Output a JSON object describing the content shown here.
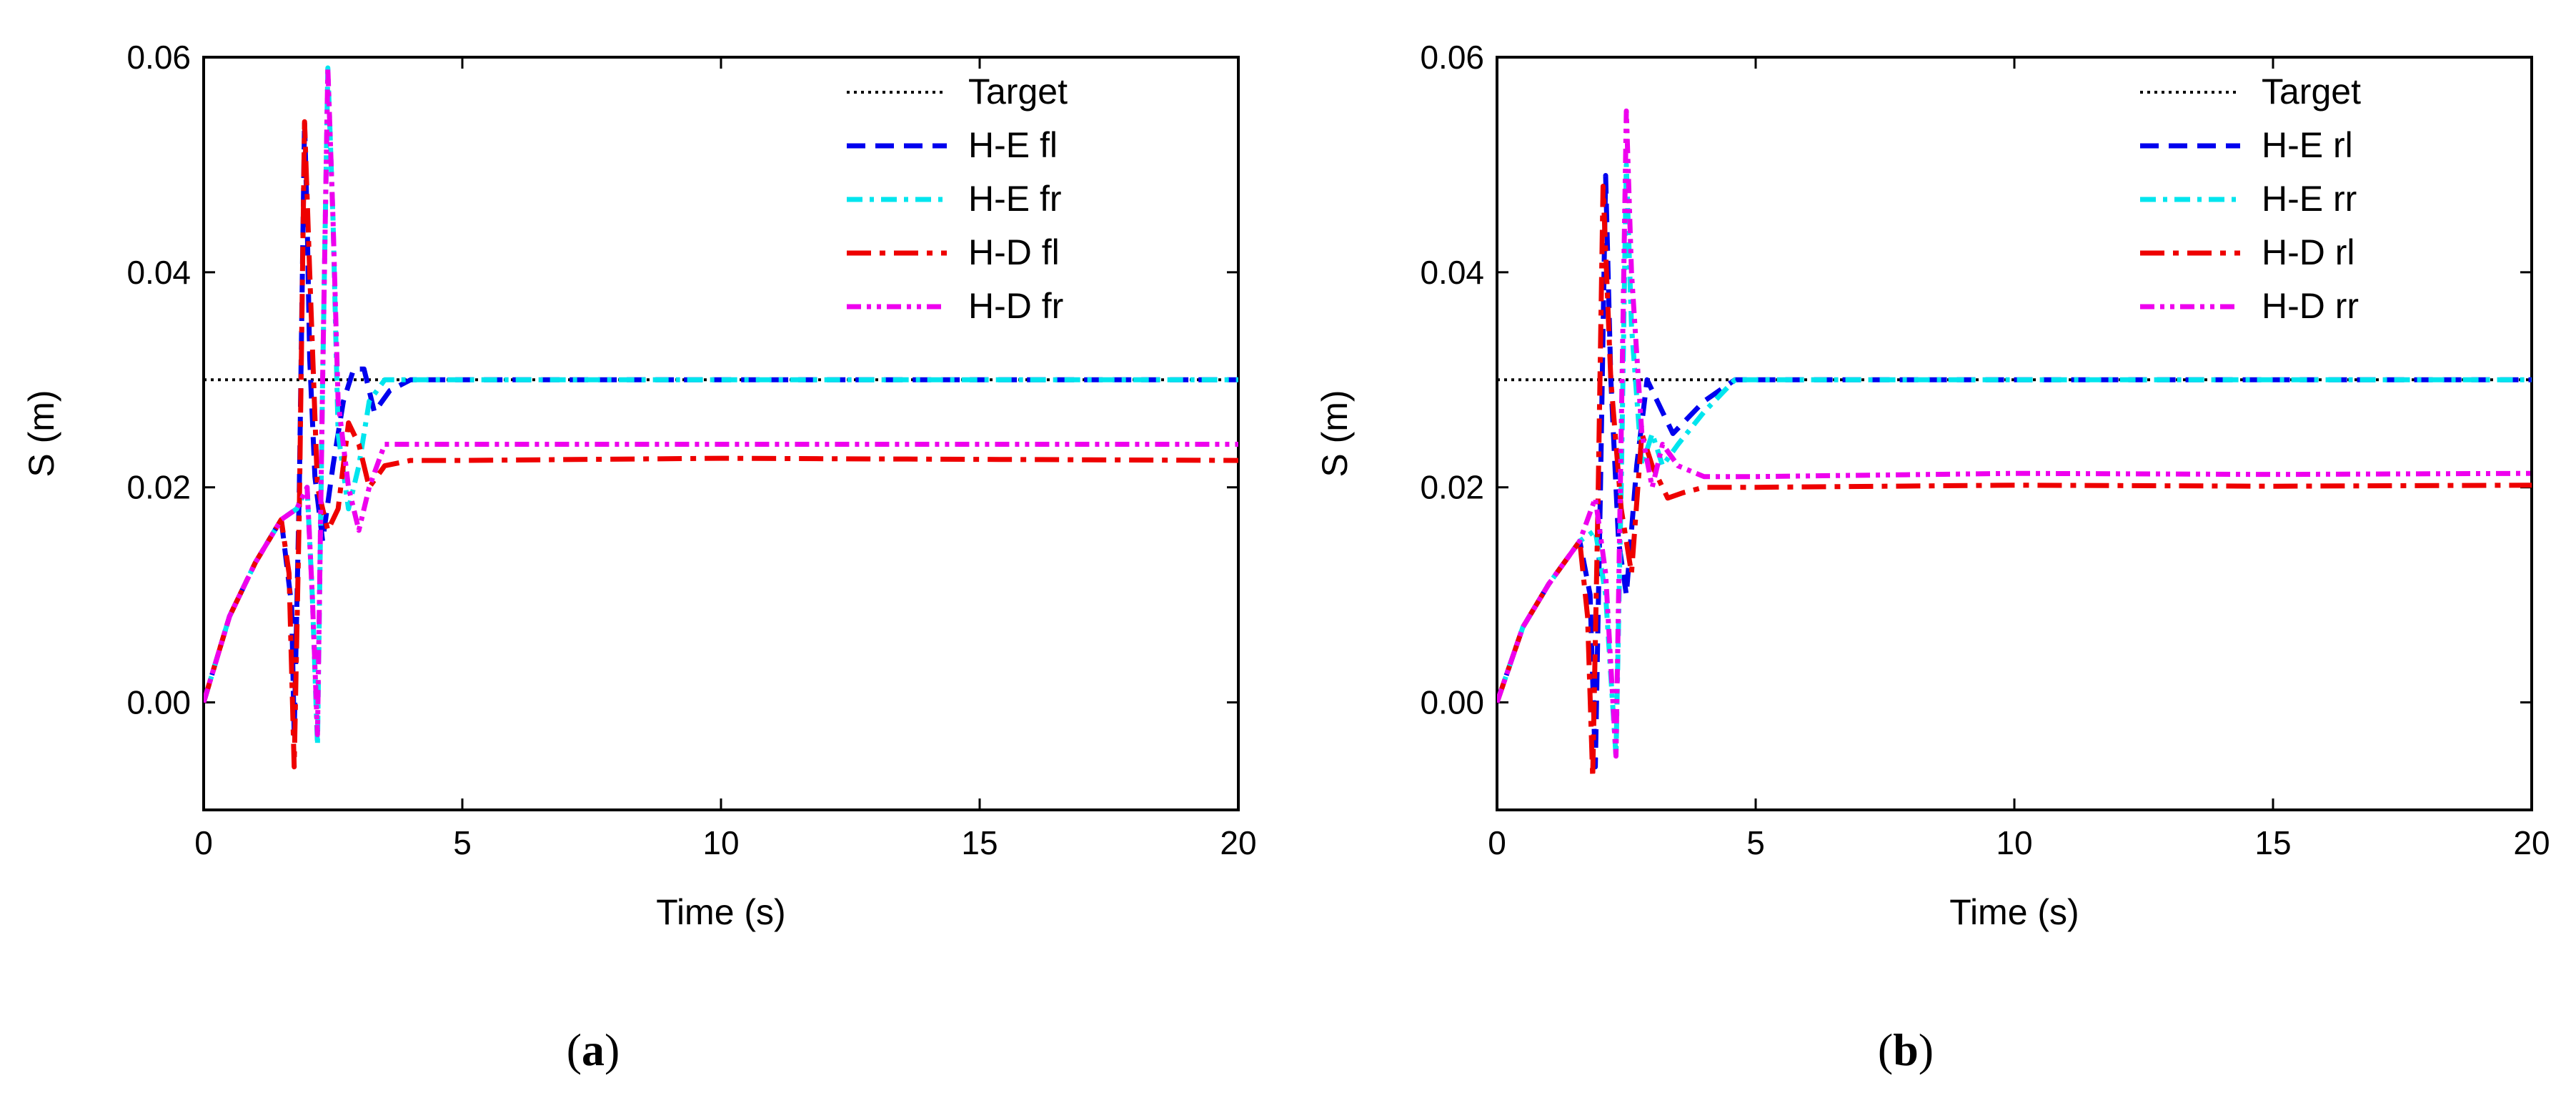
{
  "chart_data": [
    {
      "type": "line",
      "panel_label": "(a)",
      "panel_letter": "a",
      "xlabel": "Time (s)",
      "ylabel": "S (m)",
      "xlim": [
        0,
        20
      ],
      "ylim": [
        -0.01,
        0.06
      ],
      "x_ticks": [
        0,
        5,
        10,
        15,
        20
      ],
      "x_tick_labels": [
        "0",
        "5",
        "10",
        "15",
        "20"
      ],
      "y_ticks": [
        0.0,
        0.02,
        0.04,
        0.06
      ],
      "y_tick_labels": [
        "0.00",
        "0.02",
        "0.04",
        "0.06"
      ],
      "legend_position": "top-right",
      "series": [
        {
          "name": "Target",
          "color": "#000000",
          "style": "dotted",
          "x": [
            0,
            20
          ],
          "y": [
            0.03,
            0.03
          ]
        },
        {
          "name": "H-E fl",
          "color": "#0000ee",
          "style": "dash",
          "x": [
            0,
            0.5,
            1.0,
            1.5,
            1.7,
            1.75,
            1.85,
            1.95,
            2.0,
            2.05,
            2.15,
            2.3,
            2.5,
            2.7,
            2.9,
            3.1,
            3.3,
            3.6,
            4.0,
            5,
            10,
            15,
            20
          ],
          "y": [
            0.0,
            0.008,
            0.013,
            0.017,
            0.009,
            -0.003,
            0.02,
            0.054,
            0.045,
            0.032,
            0.021,
            0.015,
            0.022,
            0.028,
            0.031,
            0.031,
            0.027,
            0.029,
            0.03,
            0.03,
            0.03,
            0.03,
            0.03
          ]
        },
        {
          "name": "H-E fr",
          "color": "#00e5ee",
          "style": "dashdot",
          "x": [
            0,
            0.5,
            1.0,
            1.5,
            1.8,
            2.0,
            2.1,
            2.2,
            2.3,
            2.4,
            2.5,
            2.6,
            2.8,
            3.0,
            3.2,
            3.5,
            4.0,
            5,
            10,
            15,
            20
          ],
          "y": [
            0.0,
            0.008,
            0.013,
            0.017,
            0.018,
            0.02,
            0.01,
            -0.004,
            0.03,
            0.059,
            0.045,
            0.025,
            0.018,
            0.022,
            0.028,
            0.03,
            0.03,
            0.03,
            0.03,
            0.03,
            0.03
          ]
        },
        {
          "name": "H-D fl",
          "color": "#ee0000",
          "style": "longdashdot",
          "x": [
            0,
            0.5,
            1.0,
            1.5,
            1.65,
            1.75,
            1.85,
            1.95,
            2.05,
            2.2,
            2.4,
            2.6,
            2.8,
            3.0,
            3.2,
            3.5,
            4.0,
            5,
            10,
            15,
            20
          ],
          "y": [
            0.0,
            0.008,
            0.013,
            0.017,
            0.012,
            -0.006,
            0.018,
            0.054,
            0.04,
            0.02,
            0.016,
            0.018,
            0.026,
            0.024,
            0.02,
            0.022,
            0.0225,
            0.0225,
            0.0227,
            0.0226,
            0.0225
          ]
        },
        {
          "name": "H-D fr",
          "color": "#ee00ee",
          "style": "dashdotdot",
          "x": [
            0,
            0.5,
            1.0,
            1.5,
            1.8,
            2.0,
            2.1,
            2.2,
            2.3,
            2.4,
            2.5,
            2.6,
            2.8,
            3.0,
            3.2,
            3.5,
            4.0,
            5,
            10,
            15,
            20
          ],
          "y": [
            0.0,
            0.008,
            0.013,
            0.017,
            0.018,
            0.02,
            0.01,
            -0.003,
            0.03,
            0.059,
            0.045,
            0.028,
            0.02,
            0.016,
            0.02,
            0.024,
            0.024,
            0.024,
            0.024,
            0.024,
            0.024
          ]
        }
      ]
    },
    {
      "type": "line",
      "panel_label": "(b)",
      "panel_letter": "b",
      "xlabel": "Time (s)",
      "ylabel": "S (m)",
      "xlim": [
        0,
        20
      ],
      "ylim": [
        -0.01,
        0.06
      ],
      "x_ticks": [
        0,
        5,
        10,
        15,
        20
      ],
      "x_tick_labels": [
        "0",
        "5",
        "10",
        "15",
        "20"
      ],
      "y_ticks": [
        0.0,
        0.02,
        0.04,
        0.06
      ],
      "y_tick_labels": [
        "0.00",
        "0.02",
        "0.04",
        "0.06"
      ],
      "legend_position": "top-right",
      "series": [
        {
          "name": "Target",
          "color": "#000000",
          "style": "dotted",
          "x": [
            0,
            20
          ],
          "y": [
            0.03,
            0.03
          ]
        },
        {
          "name": "H-E rl",
          "color": "#0000ee",
          "style": "dash",
          "x": [
            0,
            0.5,
            1.0,
            1.6,
            1.8,
            1.9,
            2.0,
            2.1,
            2.2,
            2.35,
            2.5,
            2.7,
            2.9,
            3.1,
            3.4,
            4.0,
            4.6,
            5,
            10,
            15,
            20
          ],
          "y": [
            0.0,
            0.007,
            0.011,
            0.015,
            0.01,
            -0.006,
            0.02,
            0.049,
            0.03,
            0.015,
            0.01,
            0.022,
            0.03,
            0.028,
            0.025,
            0.028,
            0.03,
            0.03,
            0.03,
            0.03,
            0.03
          ]
        },
        {
          "name": "H-E rr",
          "color": "#00e5ee",
          "style": "dashdot",
          "x": [
            0,
            0.5,
            1.0,
            1.6,
            1.9,
            2.1,
            2.3,
            2.4,
            2.5,
            2.6,
            2.8,
            3.0,
            3.2,
            3.5,
            4.0,
            4.6,
            5,
            10,
            15,
            20
          ],
          "y": [
            0.0,
            0.007,
            0.011,
            0.015,
            0.016,
            0.01,
            -0.005,
            0.02,
            0.05,
            0.035,
            0.022,
            0.025,
            0.022,
            0.024,
            0.027,
            0.03,
            0.03,
            0.03,
            0.03,
            0.03
          ]
        },
        {
          "name": "H-D rl",
          "color": "#ee0000",
          "style": "longdashdot",
          "x": [
            0,
            0.5,
            1.0,
            1.6,
            1.75,
            1.85,
            1.95,
            2.05,
            2.2,
            2.4,
            2.6,
            2.8,
            3.0,
            3.3,
            3.6,
            4.0,
            5,
            10,
            15,
            20
          ],
          "y": [
            0.0,
            0.007,
            0.011,
            0.015,
            0.008,
            -0.007,
            0.018,
            0.048,
            0.03,
            0.018,
            0.012,
            0.025,
            0.022,
            0.019,
            0.0195,
            0.02,
            0.02,
            0.0202,
            0.0201,
            0.0202
          ]
        },
        {
          "name": "H-D rr",
          "color": "#ee00ee",
          "style": "dashdotdot",
          "x": [
            0,
            0.5,
            1.0,
            1.6,
            1.9,
            2.1,
            2.3,
            2.4,
            2.5,
            2.6,
            2.8,
            3.0,
            3.2,
            3.5,
            4.0,
            5,
            10,
            15,
            20
          ],
          "y": [
            0.0,
            0.007,
            0.011,
            0.015,
            0.019,
            0.012,
            -0.005,
            0.025,
            0.055,
            0.04,
            0.025,
            0.02,
            0.024,
            0.022,
            0.021,
            0.021,
            0.0213,
            0.0212,
            0.0213
          ]
        }
      ]
    }
  ]
}
